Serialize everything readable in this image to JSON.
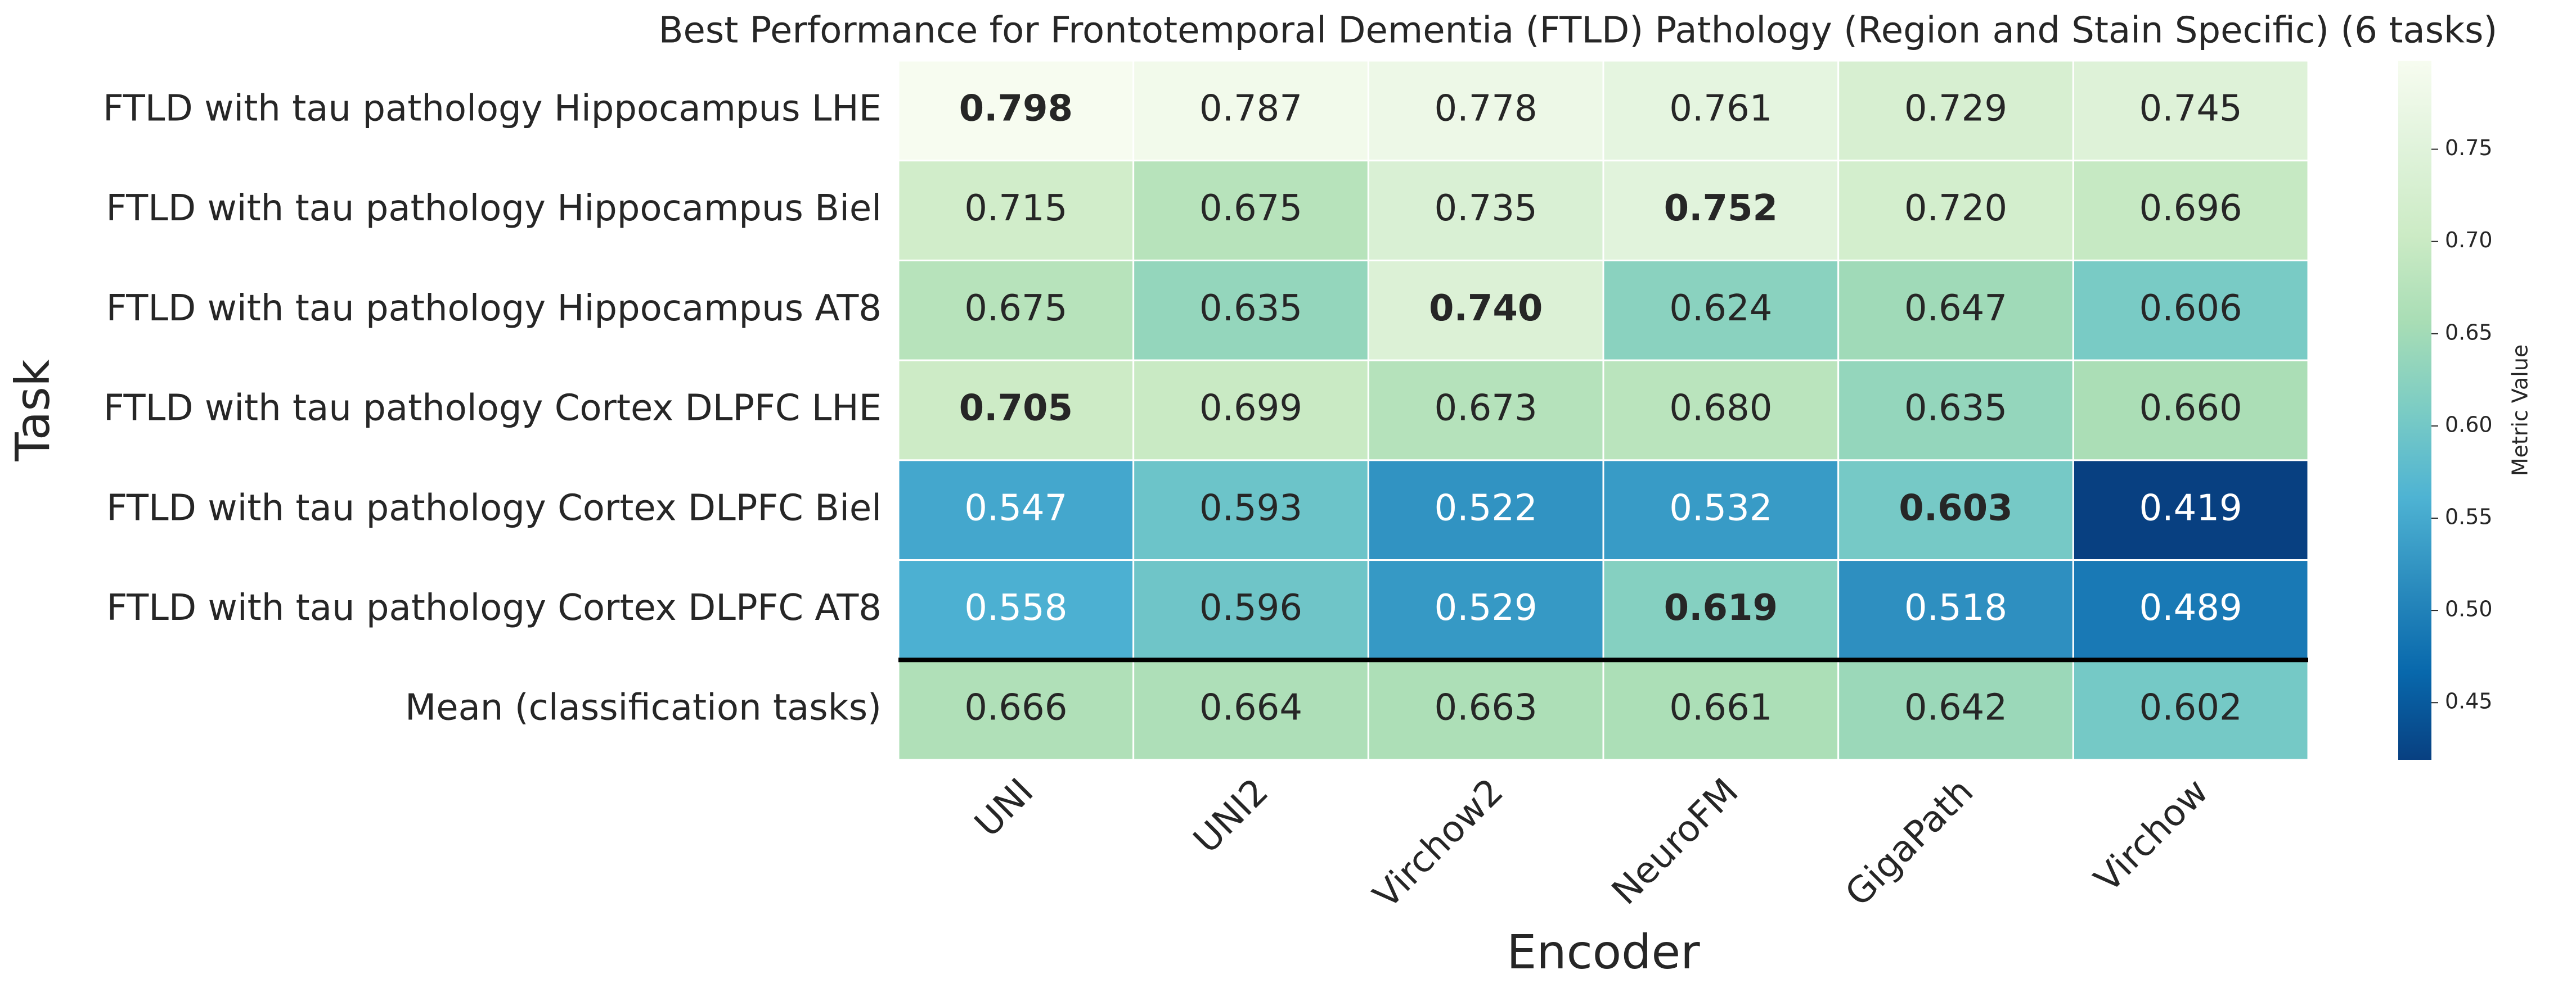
{
  "chart_data": {
    "type": "heatmap",
    "title": "Best Performance for Frontotemporal Dementia (FTLD) Pathology (Region and Stain Specific) (6 tasks)",
    "x_label": "Encoder",
    "y_label": "Task",
    "colorbar_label": "Metric Value",
    "x_categories": [
      "UNI",
      "UNI2",
      "Virchow2",
      "NeuroFM",
      "GigaPath",
      "Virchow"
    ],
    "y_categories": [
      "FTLD with tau pathology Hippocampus LHE",
      "FTLD with tau pathology Hippocampus Biel",
      "FTLD with tau pathology Hippocampus AT8",
      "FTLD with tau pathology Cortex DLPFC LHE",
      "FTLD with tau pathology Cortex DLPFC Biel",
      "FTLD with tau pathology Cortex DLPFC AT8",
      "Mean (classification tasks)"
    ],
    "values": [
      [
        0.798,
        0.787,
        0.778,
        0.761,
        0.729,
        0.745
      ],
      [
        0.715,
        0.675,
        0.735,
        0.752,
        0.72,
        0.696
      ],
      [
        0.675,
        0.635,
        0.74,
        0.624,
        0.647,
        0.606
      ],
      [
        0.705,
        0.699,
        0.673,
        0.68,
        0.635,
        0.66
      ],
      [
        0.547,
        0.593,
        0.522,
        0.532,
        0.603,
        0.419
      ],
      [
        0.558,
        0.596,
        0.529,
        0.619,
        0.518,
        0.489
      ],
      [
        0.666,
        0.664,
        0.663,
        0.661,
        0.642,
        0.602
      ]
    ],
    "value_labels": [
      [
        "0.798",
        "0.787",
        "0.778",
        "0.761",
        "0.729",
        "0.745"
      ],
      [
        "0.715",
        "0.675",
        "0.735",
        "0.752",
        "0.720",
        "0.696"
      ],
      [
        "0.675",
        "0.635",
        "0.740",
        "0.624",
        "0.647",
        "0.606"
      ],
      [
        "0.705",
        "0.699",
        "0.673",
        "0.680",
        "0.635",
        "0.660"
      ],
      [
        "0.547",
        "0.593",
        "0.522",
        "0.532",
        "0.603",
        "0.419"
      ],
      [
        "0.558",
        "0.596",
        "0.529",
        "0.619",
        "0.518",
        "0.489"
      ],
      [
        "0.666",
        "0.664",
        "0.663",
        "0.661",
        "0.642",
        "0.602"
      ]
    ],
    "clim": [
      0.419,
      0.798
    ],
    "cticks": [
      0.45,
      {
        "value": 0.5,
        "label": "0.50"
      },
      0.55,
      {
        "value": 0.6,
        "label": "0.60"
      },
      0.65,
      {
        "value": 0.7,
        "label": "0.70"
      },
      0.75
    ],
    "colormap": [
      "#084081",
      "#0868ac",
      "#2b8cbe",
      "#4eb3d3",
      "#7bccc4",
      "#a8ddb5",
      "#ccebc5",
      "#e0f3db",
      "#f7fcf0"
    ],
    "highlight_row_max": true,
    "separator_after_row": 5
  }
}
